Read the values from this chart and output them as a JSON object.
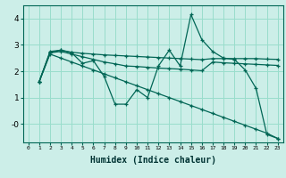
{
  "xlabel": "Humidex (Indice chaleur)",
  "bg_color": "#cceee8",
  "grid_color": "#99ddcc",
  "line_color": "#006655",
  "xlim": [
    -0.5,
    23.5
  ],
  "ylim": [
    -0.7,
    4.5
  ],
  "xticks": [
    0,
    1,
    2,
    3,
    4,
    5,
    6,
    7,
    8,
    9,
    10,
    11,
    12,
    13,
    14,
    15,
    16,
    17,
    18,
    19,
    20,
    21,
    22,
    23
  ],
  "yticks": [
    0,
    1,
    2,
    3,
    4
  ],
  "ytick_labels": [
    "-0",
    "1",
    "2",
    "3",
    "4"
  ],
  "series": [
    {
      "x": [
        1,
        2,
        3,
        4,
        5,
        6,
        7,
        8,
        9,
        10,
        11,
        12,
        13,
        14,
        15,
        16,
        17,
        18,
        19,
        20,
        21,
        22,
        23
      ],
      "y": [
        1.6,
        2.7,
        2.8,
        2.7,
        2.3,
        2.4,
        1.8,
        0.75,
        0.75,
        1.3,
        1.0,
        2.2,
        2.8,
        2.2,
        4.15,
        3.2,
        2.75,
        2.5,
        2.45,
        2.05,
        1.35,
        -0.4,
        -0.55
      ]
    },
    {
      "x": [
        1,
        2,
        3,
        4,
        5,
        6,
        7,
        8,
        9,
        10,
        11,
        12,
        13,
        14,
        15,
        16,
        17,
        18,
        19,
        20,
        21,
        22,
        23
      ],
      "y": [
        1.6,
        2.75,
        2.8,
        2.72,
        2.68,
        2.65,
        2.62,
        2.6,
        2.58,
        2.56,
        2.54,
        2.52,
        2.5,
        2.48,
        2.46,
        2.44,
        2.48,
        2.48,
        2.48,
        2.48,
        2.48,
        2.46,
        2.45
      ]
    },
    {
      "x": [
        1,
        2,
        3,
        4,
        5,
        6,
        7,
        8,
        9,
        10,
        11,
        12,
        13,
        14,
        15,
        16,
        17,
        18,
        19,
        20,
        21,
        22,
        23
      ],
      "y": [
        1.6,
        2.7,
        2.75,
        2.65,
        2.55,
        2.45,
        2.35,
        2.28,
        2.2,
        2.18,
        2.15,
        2.12,
        2.1,
        2.08,
        2.05,
        2.02,
        2.35,
        2.32,
        2.3,
        2.28,
        2.26,
        2.24,
        2.22
      ]
    },
    {
      "x": [
        1,
        2,
        3,
        4,
        5,
        6,
        7,
        8,
        9,
        10,
        11,
        12,
        13,
        14,
        15,
        16,
        17,
        18,
        19,
        20,
        21,
        22,
        23
      ],
      "y": [
        1.6,
        2.65,
        2.5,
        2.35,
        2.2,
        2.05,
        1.9,
        1.75,
        1.6,
        1.45,
        1.3,
        1.15,
        1.0,
        0.85,
        0.7,
        0.55,
        0.4,
        0.25,
        0.1,
        -0.05,
        -0.2,
        -0.35,
        -0.55
      ]
    }
  ]
}
